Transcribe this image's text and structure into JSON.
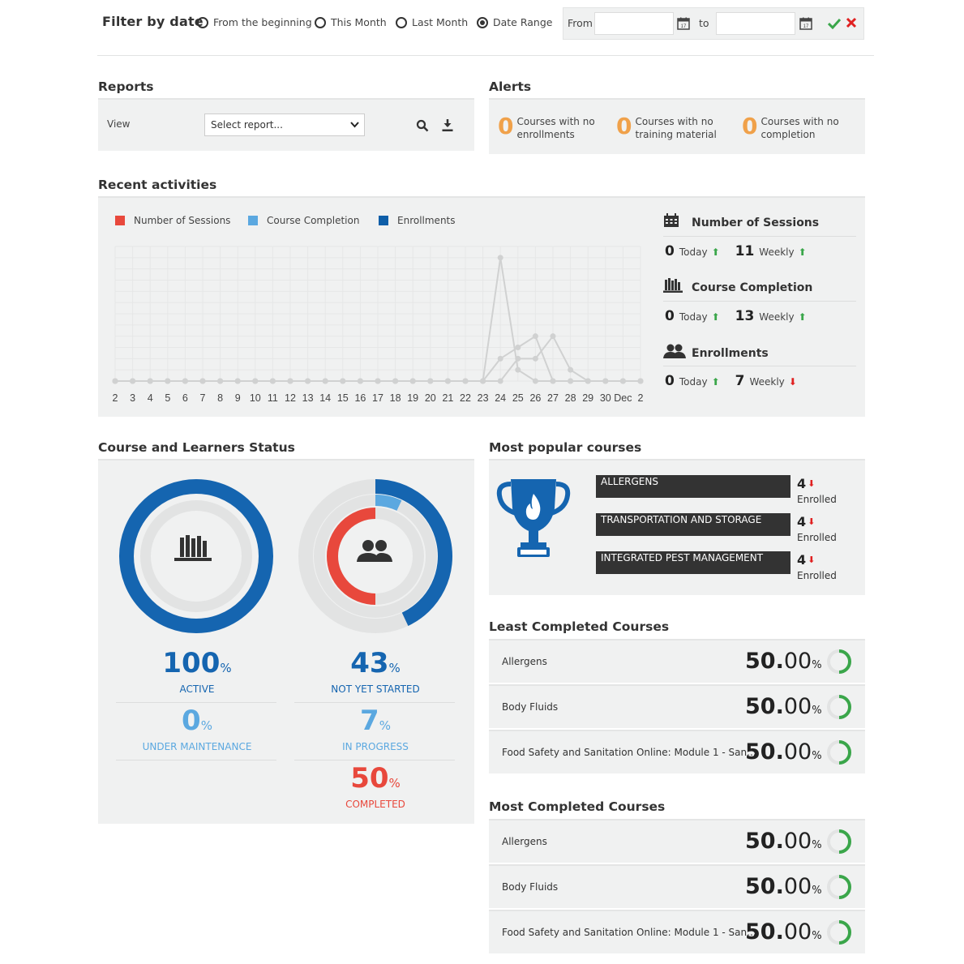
{
  "filter": {
    "title": "Filter by date",
    "options": [
      "From the beginning",
      "This Month",
      "Last Month",
      "Date Range"
    ],
    "selected": "Date Range",
    "from_label": "From",
    "to_label": "to",
    "from_value": "",
    "to_value": ""
  },
  "reports": {
    "title": "Reports",
    "view_label": "View",
    "select_value": "Select report..."
  },
  "alerts": {
    "title": "Alerts",
    "items": [
      {
        "count": "0",
        "label": "Courses with no enrollments"
      },
      {
        "count": "0",
        "label": "Courses with no training material"
      },
      {
        "count": "0",
        "label": "Courses with no completion"
      }
    ]
  },
  "recent": {
    "title": "Recent activities",
    "legend": [
      {
        "label": "Number of Sessions",
        "color": "#e8483c"
      },
      {
        "label": "Course Completion",
        "color": "#5ba8e0"
      },
      {
        "label": "Enrollments",
        "color": "#0e5ea8"
      }
    ],
    "stats": [
      {
        "title": "Number of Sessions",
        "icon": "calendar-icon",
        "today": "0",
        "today_label": "Today",
        "today_trend": "up",
        "weekly": "11",
        "weekly_label": "Weekly",
        "weekly_trend": "up"
      },
      {
        "title": "Course Completion",
        "icon": "library-icon",
        "today": "0",
        "today_label": "Today",
        "today_trend": "up",
        "weekly": "13",
        "weekly_label": "Weekly",
        "weekly_trend": "up"
      },
      {
        "title": "Enrollments",
        "icon": "users-icon",
        "today": "0",
        "today_label": "Today",
        "today_trend": "up",
        "weekly": "7",
        "weekly_label": "Weekly",
        "weekly_trend": "down"
      }
    ]
  },
  "chart_data": {
    "type": "line",
    "x": [
      "2",
      "3",
      "4",
      "5",
      "6",
      "7",
      "8",
      "9",
      "10",
      "11",
      "12",
      "13",
      "14",
      "15",
      "16",
      "17",
      "18",
      "19",
      "20",
      "21",
      "22",
      "23",
      "24",
      "25",
      "26",
      "27",
      "28",
      "29",
      "30",
      "Dec",
      "2"
    ],
    "series": [
      {
        "name": "Number of Sessions",
        "values": [
          0,
          0,
          0,
          0,
          0,
          0,
          0,
          0,
          0,
          0,
          0,
          0,
          0,
          0,
          0,
          0,
          0,
          0,
          0,
          0,
          0,
          0,
          11,
          1,
          0,
          0,
          0,
          0,
          0,
          0,
          0
        ]
      },
      {
        "name": "Course Completion",
        "values": [
          0,
          0,
          0,
          0,
          0,
          0,
          0,
          0,
          0,
          0,
          0,
          0,
          0,
          0,
          0,
          0,
          0,
          0,
          0,
          0,
          0,
          0,
          2,
          3,
          4,
          0,
          0,
          0,
          0,
          0,
          0
        ]
      },
      {
        "name": "Enrollments",
        "values": [
          0,
          0,
          0,
          0,
          0,
          0,
          0,
          0,
          0,
          0,
          0,
          0,
          0,
          0,
          0,
          0,
          0,
          0,
          0,
          0,
          0,
          0,
          0,
          2,
          2,
          4,
          1,
          0,
          0,
          0,
          0
        ]
      }
    ],
    "ylim": [
      0,
      12
    ],
    "grid": true,
    "legend": "top-left"
  },
  "status": {
    "title": "Course and Learners Status",
    "courses": {
      "ring_percent": 100,
      "metrics": [
        {
          "value": "100",
          "unit": "%",
          "label": "ACTIVE",
          "color": "#1565b0"
        },
        {
          "value": "0",
          "unit": "%",
          "label": "UNDER MAINTENANCE",
          "color": "#5ba8e0"
        }
      ]
    },
    "learners": {
      "rings": {
        "not_started": 43,
        "in_progress": 7,
        "completed": 50
      },
      "metrics": [
        {
          "value": "43",
          "unit": "%",
          "label": "NOT YET STARTED",
          "color": "#1565b0"
        },
        {
          "value": "7",
          "unit": "%",
          "label": "IN PROGRESS",
          "color": "#5ba8e0"
        },
        {
          "value": "50",
          "unit": "%",
          "label": "COMPLETED",
          "color": "#e8483c"
        }
      ]
    }
  },
  "popular": {
    "title": "Most popular courses",
    "items": [
      {
        "name": "ALLERGENS",
        "count": "4",
        "trend": "down",
        "label": "Enrolled"
      },
      {
        "name": "TRANSPORTATION AND STORAGE",
        "count": "4",
        "trend": "down",
        "label": "Enrolled"
      },
      {
        "name": "INTEGRATED PEST MANAGEMENT",
        "count": "4",
        "trend": "down",
        "label": "Enrolled"
      }
    ]
  },
  "least": {
    "title": "Least Completed Courses",
    "items": [
      {
        "name": "Allergens",
        "int": "50.",
        "dec": "00",
        "unit": "%",
        "progress": 0.5
      },
      {
        "name": "Body Fluids",
        "int": "50.",
        "dec": "00",
        "unit": "%",
        "progress": 0.5
      },
      {
        "name": "Food Safety and Sanitation Online: Module 1 - San...",
        "int": "50.",
        "dec": "00",
        "unit": "%",
        "progress": 0.5
      }
    ]
  },
  "most": {
    "title": "Most Completed Courses",
    "items": [
      {
        "name": "Allergens",
        "int": "50.",
        "dec": "00",
        "unit": "%",
        "progress": 0.5
      },
      {
        "name": "Body Fluids",
        "int": "50.",
        "dec": "00",
        "unit": "%",
        "progress": 0.5
      },
      {
        "name": "Food Safety and Sanitation Online: Module 1 - San...",
        "int": "50.",
        "dec": "00",
        "unit": "%",
        "progress": 0.5
      }
    ]
  },
  "colors": {
    "accent_blue": "#1565b0",
    "light_blue": "#5ba8e0",
    "red": "#e8483c",
    "orange": "#f0a14a",
    "green": "#3aa64a",
    "panel_bg": "#f0f1f1"
  }
}
